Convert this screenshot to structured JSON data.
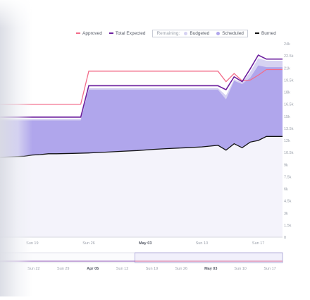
{
  "chart_data": {
    "type": "area",
    "legend": {
      "placement": "top-right",
      "items": [
        {
          "key": "approved",
          "label": "Approved",
          "color": "#f26d8a",
          "marker": "line"
        },
        {
          "key": "total_expected",
          "label": "Total Expected",
          "color": "#6c1f9e",
          "marker": "line"
        }
      ],
      "remaining_group": {
        "label": "Remaining:",
        "items": [
          {
            "key": "budgeted",
            "label": "Budgeted",
            "color": "#d6d2f2",
            "marker": "dot"
          },
          {
            "key": "scheduled",
            "label": "Scheduled",
            "color": "#b0a6ec",
            "marker": "dot"
          }
        ]
      },
      "burned": {
        "key": "burned",
        "label": "Burned",
        "color": "#111111",
        "marker": "line"
      }
    },
    "y_axis": {
      "position": "right",
      "min": 0,
      "max": 24000,
      "ticks": [
        {
          "value": 0,
          "label": "0"
        },
        {
          "value": 1500,
          "label": "1.5k"
        },
        {
          "value": 3000,
          "label": "3k"
        },
        {
          "value": 4500,
          "label": "4.5k"
        },
        {
          "value": 6000,
          "label": "6k"
        },
        {
          "value": 7500,
          "label": "7.5k"
        },
        {
          "value": 9000,
          "label": "9k"
        },
        {
          "value": 10500,
          "label": "10.5k"
        },
        {
          "value": 12000,
          "label": "12k"
        },
        {
          "value": 13500,
          "label": "13.5k"
        },
        {
          "value": 15000,
          "label": "15k"
        },
        {
          "value": 16500,
          "label": "16.5k"
        },
        {
          "value": 18000,
          "label": "18k"
        },
        {
          "value": 19500,
          "label": "19.5k"
        },
        {
          "value": 21000,
          "label": "21k"
        },
        {
          "value": 22500,
          "label": "22.5k"
        },
        {
          "value": 24000,
          "label": "24k"
        }
      ],
      "grid": false
    },
    "x_axis": {
      "start": "2020-04-15",
      "end": "2020-05-20",
      "ticks": [
        {
          "date": "2020-04-19",
          "label": "Sun 19",
          "bold": false
        },
        {
          "date": "2020-04-26",
          "label": "Sun 26",
          "bold": false
        },
        {
          "date": "2020-05-03",
          "label": "May 03",
          "bold": true
        },
        {
          "date": "2020-05-10",
          "label": "Sun 10",
          "bold": false
        },
        {
          "date": "2020-05-17",
          "label": "Sun 17",
          "bold": false
        }
      ]
    },
    "series": [
      {
        "name": "Approved",
        "key": "approved",
        "color": "#f26d8a",
        "points": [
          [
            "2020-04-15",
            16500
          ],
          [
            "2020-04-25",
            16500
          ],
          [
            "2020-04-26",
            20600
          ],
          [
            "2020-05-12",
            20600
          ],
          [
            "2020-05-13",
            19300
          ],
          [
            "2020-05-14",
            20300
          ],
          [
            "2020-05-15",
            19400
          ],
          [
            "2020-05-16",
            19500
          ],
          [
            "2020-05-17",
            20100
          ],
          [
            "2020-05-18",
            20800
          ],
          [
            "2020-05-20",
            20800
          ]
        ]
      },
      {
        "name": "Total Expected",
        "key": "total_expected",
        "color": "#6c1f9e",
        "points": [
          [
            "2020-04-15",
            14900
          ],
          [
            "2020-04-25",
            14900
          ],
          [
            "2020-04-26",
            18800
          ],
          [
            "2020-05-12",
            18800
          ],
          [
            "2020-05-13",
            18300
          ],
          [
            "2020-05-14",
            19900
          ],
          [
            "2020-05-15",
            19300
          ],
          [
            "2020-05-16",
            20900
          ],
          [
            "2020-05-17",
            22600
          ],
          [
            "2020-05-18",
            22100
          ],
          [
            "2020-05-20",
            22100
          ]
        ]
      },
      {
        "name": "Budgeted",
        "key": "budgeted",
        "color": "#d6d2f2",
        "points": [
          [
            "2020-04-15",
            14700
          ],
          [
            "2020-04-25",
            14700
          ],
          [
            "2020-04-26",
            18500
          ],
          [
            "2020-05-12",
            18500
          ],
          [
            "2020-05-13",
            17600
          ],
          [
            "2020-05-14",
            19600
          ],
          [
            "2020-05-15",
            19200
          ],
          [
            "2020-05-16",
            20500
          ],
          [
            "2020-05-17",
            22200
          ],
          [
            "2020-05-18",
            21900
          ],
          [
            "2020-05-20",
            21900
          ]
        ]
      },
      {
        "name": "Scheduled",
        "key": "scheduled",
        "color": "#b0a6ec",
        "points": [
          [
            "2020-04-15",
            14500
          ],
          [
            "2020-04-25",
            14500
          ],
          [
            "2020-04-26",
            18300
          ],
          [
            "2020-05-12",
            18300
          ],
          [
            "2020-05-13",
            17100
          ],
          [
            "2020-05-14",
            19400
          ],
          [
            "2020-05-15",
            19000
          ],
          [
            "2020-05-16",
            19800
          ],
          [
            "2020-05-17",
            21300
          ],
          [
            "2020-05-18",
            21100
          ],
          [
            "2020-05-20",
            21100
          ]
        ]
      },
      {
        "name": "Burned",
        "key": "burned",
        "color": "#111111",
        "points": [
          [
            "2020-04-15",
            9900
          ],
          [
            "2020-04-16",
            9950
          ],
          [
            "2020-04-17",
            10000
          ],
          [
            "2020-04-18",
            10050
          ],
          [
            "2020-04-19",
            10200
          ],
          [
            "2020-04-20",
            10250
          ],
          [
            "2020-04-21",
            10350
          ],
          [
            "2020-04-22",
            10350
          ],
          [
            "2020-04-24",
            10400
          ],
          [
            "2020-04-26",
            10450
          ],
          [
            "2020-04-28",
            10550
          ],
          [
            "2020-04-30",
            10650
          ],
          [
            "2020-05-02",
            10750
          ],
          [
            "2020-05-04",
            10900
          ],
          [
            "2020-05-06",
            11000
          ],
          [
            "2020-05-08",
            11100
          ],
          [
            "2020-05-10",
            11200
          ],
          [
            "2020-05-11",
            11300
          ],
          [
            "2020-05-12",
            11400
          ],
          [
            "2020-05-13",
            10800
          ],
          [
            "2020-05-14",
            11600
          ],
          [
            "2020-05-15",
            11100
          ],
          [
            "2020-05-16",
            11800
          ],
          [
            "2020-05-17",
            12000
          ],
          [
            "2020-05-18",
            12500
          ],
          [
            "2020-05-20",
            12500
          ]
        ]
      }
    ],
    "navigator": {
      "start": "2020-03-14",
      "end": "2020-05-20",
      "window": [
        "2020-04-15",
        "2020-05-20"
      ],
      "ticks": [
        {
          "date": "2020-03-22",
          "label": "Sun 22",
          "bold": false
        },
        {
          "date": "2020-03-29",
          "label": "Sun 29",
          "bold": false
        },
        {
          "date": "2020-04-05",
          "label": "Apr 05",
          "bold": true
        },
        {
          "date": "2020-04-12",
          "label": "Sun 12",
          "bold": false
        },
        {
          "date": "2020-04-19",
          "label": "Sun 19",
          "bold": false
        },
        {
          "date": "2020-04-26",
          "label": "Sun 26",
          "bold": false
        },
        {
          "date": "2020-05-03",
          "label": "May 03",
          "bold": true
        },
        {
          "date": "2020-05-10",
          "label": "Sun 10",
          "bold": false
        },
        {
          "date": "2020-05-17",
          "label": "Sun 17",
          "bold": false
        }
      ]
    }
  }
}
